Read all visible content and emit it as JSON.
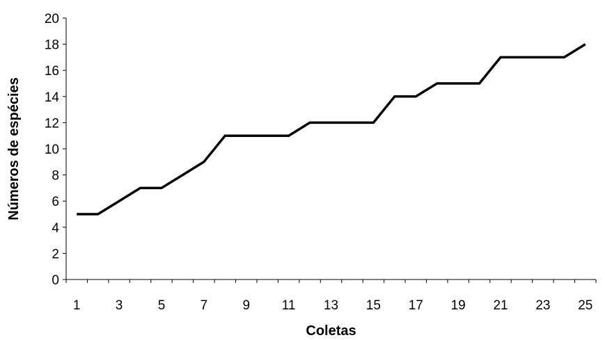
{
  "chart_data": {
    "type": "line",
    "title": "",
    "xlabel": "Coletas",
    "ylabel": "Números de espécies",
    "x": [
      1,
      2,
      3,
      4,
      5,
      6,
      7,
      8,
      9,
      10,
      11,
      12,
      13,
      14,
      15,
      16,
      17,
      18,
      19,
      20,
      21,
      22,
      23,
      24,
      25
    ],
    "x_tick_labels": [
      "1",
      "3",
      "5",
      "7",
      "9",
      "11",
      "13",
      "15",
      "17",
      "19",
      "21",
      "23",
      "25"
    ],
    "y_tick_labels": [
      "0",
      "2",
      "4",
      "6",
      "8",
      "10",
      "12",
      "14",
      "16",
      "18",
      "20"
    ],
    "ylim": [
      0,
      20
    ],
    "grid": false,
    "legend": "none",
    "series": [
      {
        "values": [
          5,
          5,
          6,
          7,
          7,
          8,
          9,
          11,
          11,
          11,
          11,
          12,
          12,
          12,
          12,
          14,
          14,
          15,
          15,
          15,
          17,
          17,
          17,
          17,
          18
        ],
        "color": "#000000"
      }
    ]
  }
}
